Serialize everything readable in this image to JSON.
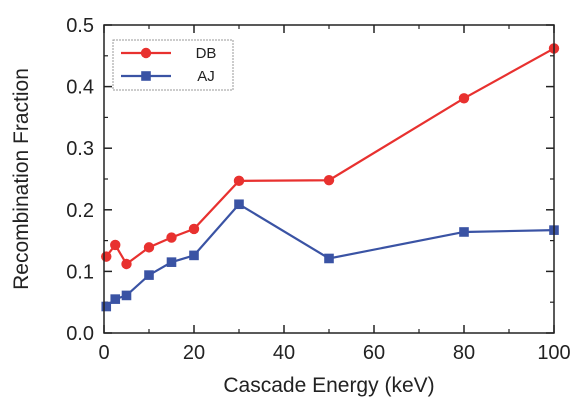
{
  "chart_data": {
    "type": "line",
    "title": "",
    "xlabel": "Cascade Energy (keV)",
    "ylabel": "Recombination Fraction",
    "xlim": [
      0,
      100
    ],
    "ylim": [
      0.0,
      0.5
    ],
    "x_ticks": [
      "0",
      "20",
      "40",
      "60",
      "80",
      "100"
    ],
    "y_ticks": [
      "0.0",
      "0.1",
      "0.2",
      "0.3",
      "0.4",
      "0.5"
    ],
    "grid": false,
    "legend_position": "top-left",
    "series": [
      {
        "name": "DB",
        "color": "#e8312f",
        "marker": "circle",
        "x": [
          0.5,
          2.5,
          5,
          10,
          15,
          20,
          30,
          50,
          80,
          100
        ],
        "y": [
          0.124,
          0.143,
          0.112,
          0.139,
          0.155,
          0.169,
          0.247,
          0.248,
          0.381,
          0.462
        ]
      },
      {
        "name": "AJ",
        "color": "#3a53a4",
        "marker": "square",
        "x": [
          0.5,
          2.5,
          5,
          10,
          15,
          20,
          30,
          50,
          80,
          100
        ],
        "y": [
          0.043,
          0.055,
          0.061,
          0.094,
          0.115,
          0.126,
          0.209,
          0.121,
          0.164,
          0.167
        ]
      }
    ]
  }
}
